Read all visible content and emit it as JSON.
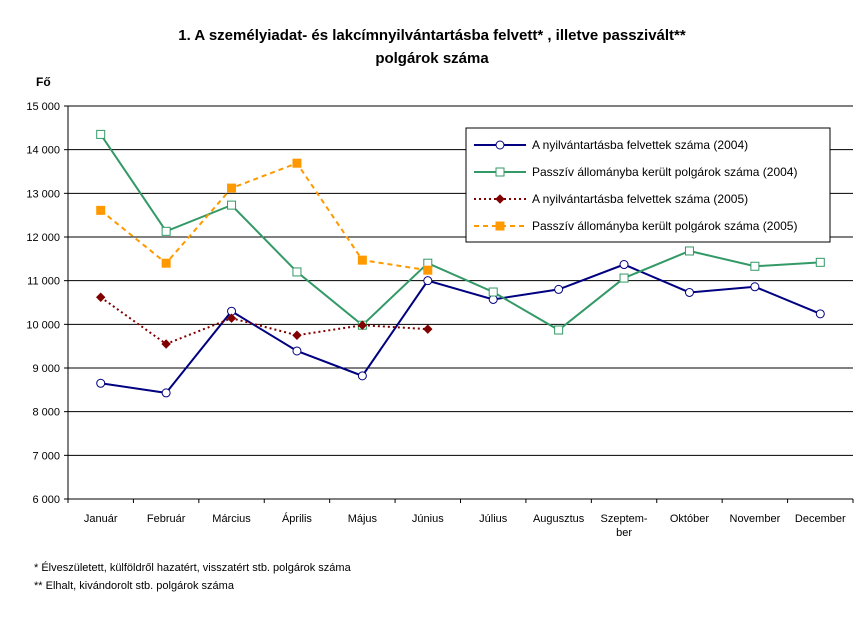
{
  "chart_data": {
    "type": "line",
    "title": [
      "1. A személyiadat- és lakcímnyilvántartásba felvett* , illetve passzivált**",
      "polgárok száma"
    ],
    "y_label": "Fő",
    "categories": [
      "Január",
      "Február",
      "Március",
      "Április",
      "Május",
      "Június",
      "Július",
      "Augusztus",
      "Szeptem-\nber",
      "Október",
      "November",
      "December"
    ],
    "series": [
      {
        "name": "A nyilvántartásba felvettek száma (2004)",
        "color": "#000080",
        "marker": "circle",
        "marker_fill": "#ffffff",
        "line_style": "solid",
        "values": [
          8650,
          8430,
          10300,
          9390,
          8820,
          11000,
          10570,
          10800,
          11370,
          10730,
          10860,
          10240
        ]
      },
      {
        "name": "Passzív állományba került polgárok száma (2004)",
        "color": "#339966",
        "marker": "square",
        "marker_fill": "#ffffff",
        "line_style": "solid",
        "values": [
          14350,
          12130,
          12730,
          11200,
          9980,
          11400,
          10740,
          9870,
          11060,
          11680,
          11330,
          11420
        ]
      },
      {
        "name": "A nyilvántartásba felvettek száma (2005)",
        "color": "#800000",
        "marker": "diamond",
        "marker_fill": "#800000",
        "line_style": "dotted",
        "values": [
          10620,
          9550,
          10140,
          9750,
          9980,
          9890,
          null,
          null,
          null,
          null,
          null,
          null
        ]
      },
      {
        "name": "Passzív állományba került polgárok száma (2005)",
        "color": "#ff9900",
        "marker": "square",
        "marker_fill": "#ff9900",
        "line_style": "dashed",
        "values": [
          12610,
          11400,
          13120,
          13690,
          11470,
          11240,
          null,
          null,
          null,
          null,
          null,
          null
        ]
      }
    ],
    "ylim": [
      6000,
      15000
    ],
    "yticks": [
      {
        "value": 6000,
        "label": "6 000"
      },
      {
        "value": 7000,
        "label": "7 000"
      },
      {
        "value": 8000,
        "label": "8 000"
      },
      {
        "value": 9000,
        "label": "9 000"
      },
      {
        "value": 10000,
        "label": "10 000"
      },
      {
        "value": 11000,
        "label": "11 000"
      },
      {
        "value": 12000,
        "label": "12 000"
      },
      {
        "value": 13000,
        "label": "13 000"
      },
      {
        "value": 14000,
        "label": "14 000"
      },
      {
        "value": 15000,
        "label": "15 000"
      }
    ],
    "grid": true,
    "legend": "top-right",
    "footnotes": [
      "* Élveszületett, külföldről hazatért, visszatért stb. polgárok száma",
      "** Elhalt, kivándorolt stb. polgárok száma"
    ]
  }
}
